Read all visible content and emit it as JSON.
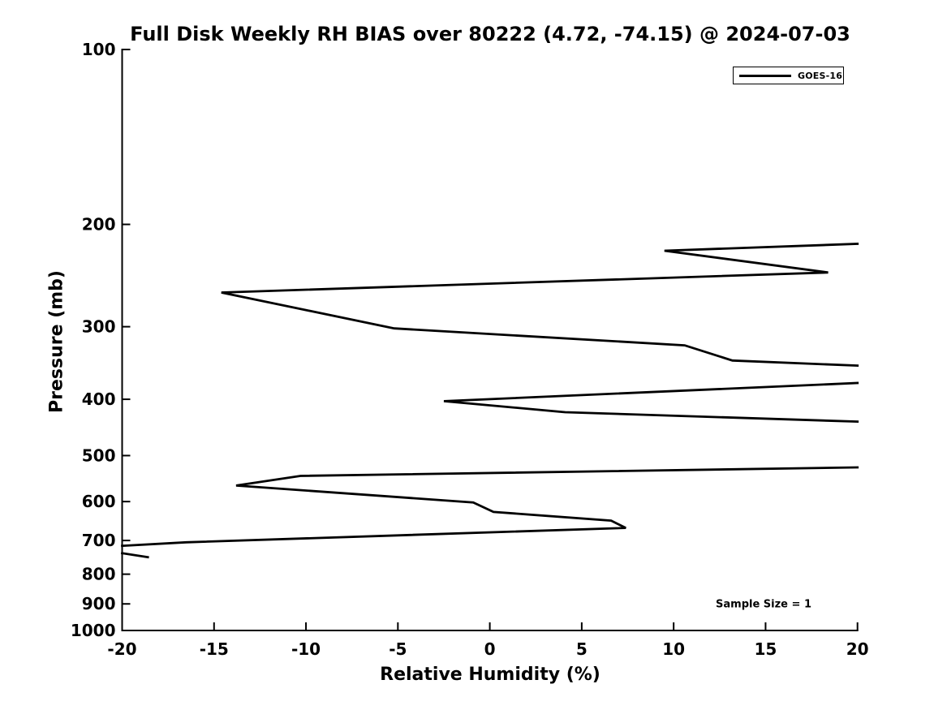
{
  "figure": {
    "background_color": "#ffffff",
    "foreground_color": "#000000"
  },
  "chart_data": {
    "type": "line",
    "title": "Full Disk Weekly RH BIAS over 80222 (4.72, -74.15) @ 2024-07-03",
    "xlabel": "Relative Humidity (%)",
    "ylabel": "Pressure (mb)",
    "xlim": [
      -20,
      20
    ],
    "ylim": [
      1000,
      100
    ],
    "yscale": "log",
    "grid": false,
    "xticks": [
      -20,
      -15,
      -10,
      -5,
      0,
      5,
      10,
      15,
      20
    ],
    "yticks": [
      100,
      200,
      300,
      400,
      500,
      600,
      700,
      800,
      900,
      1000
    ],
    "legend": {
      "position": "upper right",
      "entries": [
        {
          "label": "GOES-16",
          "color": "#000000"
        }
      ]
    },
    "annotation": "Sample Size = 1",
    "series": [
      {
        "name": "GOES-16",
        "color": "#000000",
        "linewidth": 2.8,
        "segments": [
          [
            [
              20,
              216
            ],
            [
              9.5,
              222
            ],
            [
              18.4,
              242
            ],
            [
              -14.6,
              262
            ],
            [
              -5.2,
              302
            ],
            [
              10.6,
              323
            ],
            [
              13.2,
              343
            ],
            [
              20,
              350
            ]
          ],
          [
            [
              20,
              375
            ],
            [
              -2.5,
              403
            ],
            [
              4.1,
              421
            ],
            [
              20,
              437
            ]
          ],
          [
            [
              20,
              524
            ],
            [
              -10.3,
              542
            ],
            [
              -13.8,
              563
            ],
            [
              -0.9,
              602
            ],
            [
              0.2,
              625
            ],
            [
              6.6,
              647
            ],
            [
              7.4,
              666
            ],
            [
              -16.5,
              705
            ],
            [
              -20,
              715
            ]
          ],
          [
            [
              -20,
              736
            ],
            [
              -18.6,
              748
            ]
          ]
        ]
      }
    ]
  }
}
